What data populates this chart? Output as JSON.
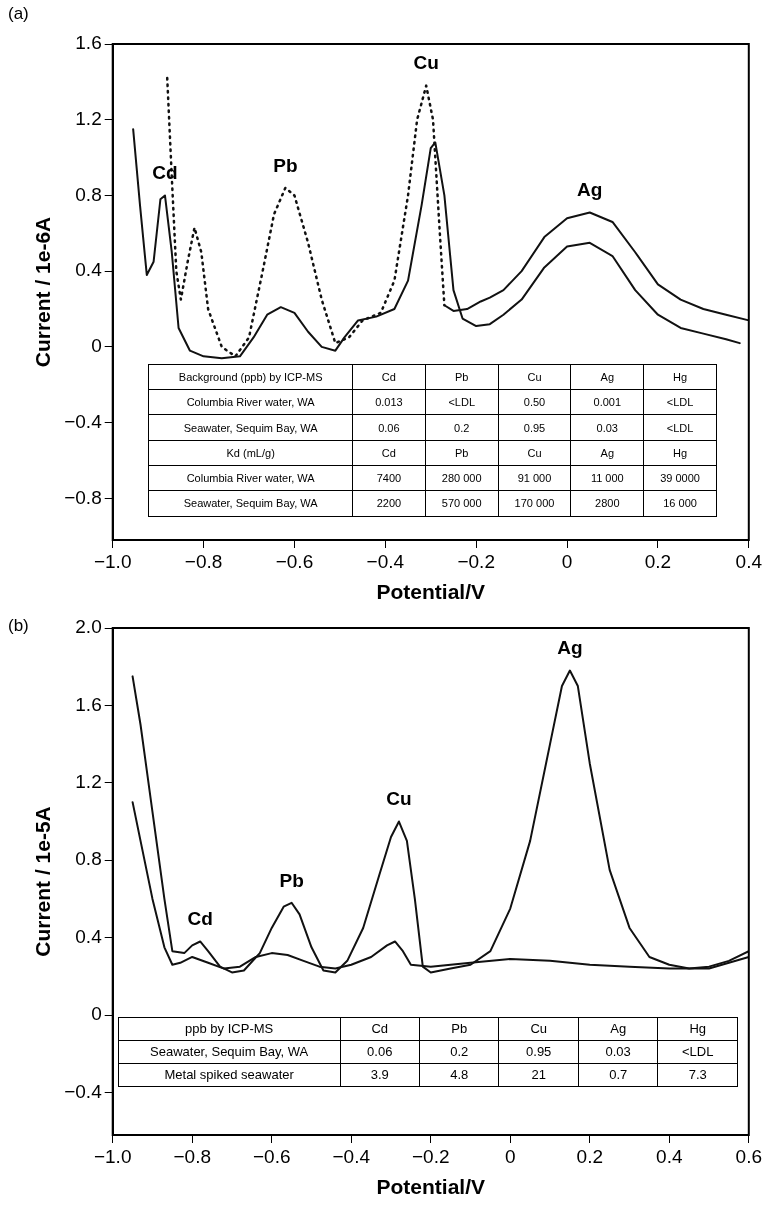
{
  "chart_data": [
    {
      "type": "line",
      "title": "(a)",
      "xlabel": "Potential/V",
      "ylabel": "Current / 1e-6A",
      "grid": false,
      "legend": false,
      "marker": "none",
      "xlim": [
        -1.0,
        0.4
      ],
      "xticks": [
        {
          "value": -1.0,
          "label": "−1.0"
        },
        {
          "value": -0.8,
          "label": "−0.8"
        },
        {
          "value": -0.6,
          "label": "−0.6"
        },
        {
          "value": -0.4,
          "label": "−0.4"
        },
        {
          "value": -0.2,
          "label": "−0.2"
        },
        0,
        0.2,
        0.4
      ],
      "ylim": [
        -1.02,
        1.6
      ],
      "yticks": [
        {
          "value": -0.8,
          "label": "−0.8"
        },
        {
          "value": -0.4,
          "label": "−0.4"
        },
        0,
        0.4,
        0.8,
        1.2,
        1.6
      ],
      "series": [
        {
          "color": "#111111",
          "line_style": "solid",
          "x": [
            -0.955,
            -0.94,
            -0.925,
            -0.91,
            -0.895,
            -0.885,
            -0.87,
            -0.855,
            -0.83,
            -0.8,
            -0.76,
            -0.72,
            -0.69,
            -0.66,
            -0.63,
            -0.6,
            -0.57,
            -0.54,
            -0.51,
            -0.49,
            -0.46,
            -0.42,
            -0.38,
            -0.35,
            -0.32,
            -0.3,
            -0.29,
            -0.27,
            -0.25,
            -0.23,
            -0.2,
            -0.17,
            -0.14,
            -0.1,
            -0.05,
            0.0,
            0.05,
            0.1,
            0.15,
            0.2,
            0.25,
            0.3,
            0.35,
            0.38
          ],
          "values": [
            1.15,
            0.75,
            0.38,
            0.45,
            0.78,
            0.8,
            0.5,
            0.1,
            -0.02,
            -0.05,
            -0.06,
            -0.05,
            0.05,
            0.17,
            0.21,
            0.18,
            0.08,
            0.0,
            -0.02,
            0.05,
            0.14,
            0.16,
            0.2,
            0.35,
            0.75,
            1.05,
            1.08,
            0.8,
            0.3,
            0.15,
            0.11,
            0.12,
            0.17,
            0.25,
            0.42,
            0.53,
            0.55,
            0.48,
            0.3,
            0.17,
            0.1,
            0.07,
            0.04,
            0.02
          ]
        },
        {
          "color": "#111111",
          "line_style": "dotted",
          "x": [
            -0.88,
            -0.87,
            -0.86,
            -0.85,
            -0.835,
            -0.82,
            -0.805,
            -0.79,
            -0.76,
            -0.73,
            -0.7,
            -0.67,
            -0.645,
            -0.62,
            -0.6,
            -0.57,
            -0.54,
            -0.51,
            -0.48,
            -0.45,
            -0.41,
            -0.38,
            -0.35,
            -0.33,
            -0.31,
            -0.295,
            -0.28,
            -0.27
          ],
          "values": [
            1.42,
            0.9,
            0.4,
            0.25,
            0.45,
            0.63,
            0.5,
            0.2,
            0.0,
            -0.05,
            0.05,
            0.4,
            0.7,
            0.84,
            0.8,
            0.55,
            0.25,
            0.02,
            0.05,
            0.14,
            0.18,
            0.35,
            0.8,
            1.2,
            1.38,
            1.2,
            0.6,
            0.22
          ]
        },
        {
          "color": "#111111",
          "line_style": "solid",
          "x": [
            -0.27,
            -0.25,
            -0.22,
            -0.19,
            -0.17,
            -0.14,
            -0.1,
            -0.05,
            0.0,
            0.05,
            0.1,
            0.15,
            0.2,
            0.25,
            0.3,
            0.35,
            0.4
          ],
          "values": [
            0.22,
            0.19,
            0.2,
            0.24,
            0.26,
            0.3,
            0.4,
            0.58,
            0.68,
            0.71,
            0.66,
            0.5,
            0.33,
            0.25,
            0.2,
            0.17,
            0.14
          ]
        }
      ],
      "annotations": [
        {
          "text": "Cd",
          "x": -0.885,
          "y": 0.8
        },
        {
          "text": "Pb",
          "x": -0.62,
          "y": 0.84
        },
        {
          "text": "Cu",
          "x": -0.31,
          "y": 1.38
        },
        {
          "text": "Ag",
          "x": 0.05,
          "y": 0.71
        },
        "Background (ppb) by ICP-MS",
        "Cd",
        "Pb",
        "Cu",
        "Ag",
        "Hg",
        "Columbia River water, WA",
        "0.013",
        "<LDL",
        "0.50",
        "0.001",
        "<LDL",
        "Seawater, Sequim Bay, WA",
        "0.06",
        "0.2",
        "0.95",
        "0.03",
        "<LDL",
        "Kd (mL/g)",
        "Cd",
        "Pb",
        "Cu",
        "Ag",
        "Hg",
        "Columbia River water, WA",
        "7400",
        "280 000",
        "91 000",
        "11 000",
        "39 0000",
        "Seawater, Sequim Bay, WA",
        "2200",
        "570 000",
        "170 000",
        "2800",
        "16 000"
      ]
    },
    {
      "type": "line",
      "title": "(b)",
      "xlabel": "Potential/V",
      "ylabel": "Current / 1e-5A",
      "grid": false,
      "legend": false,
      "marker": "none",
      "xlim": [
        -1.0,
        0.6
      ],
      "xticks": [
        {
          "value": -1.0,
          "label": "−1.0"
        },
        {
          "value": -0.8,
          "label": "−0.8"
        },
        {
          "value": -0.6,
          "label": "−0.6"
        },
        {
          "value": -0.4,
          "label": "−0.4"
        },
        {
          "value": -0.2,
          "label": "−0.2"
        },
        0,
        0.2,
        0.4,
        0.6
      ],
      "ylim": [
        -0.62,
        2.0
      ],
      "yticks": [
        {
          "value": -0.4,
          "label": "−0.4"
        },
        0,
        0.4,
        0.8,
        1.2,
        1.6,
        {
          "value": 2,
          "label": "2.0"
        }
      ],
      "series": [
        {
          "color": "#111111",
          "line_style": "solid",
          "x": [
            -0.95,
            -0.93,
            -0.9,
            -0.87,
            -0.85,
            -0.82,
            -0.8,
            -0.78,
            -0.76,
            -0.73,
            -0.7,
            -0.67,
            -0.63,
            -0.6,
            -0.57,
            -0.55,
            -0.53,
            -0.5,
            -0.47,
            -0.44,
            -0.41,
            -0.37,
            -0.33,
            -0.3,
            -0.28,
            -0.26,
            -0.24,
            -0.22,
            -0.2,
            -0.15,
            -0.1,
            -0.05,
            0.0,
            0.05,
            0.1,
            0.13,
            0.15,
            0.17,
            0.2,
            0.25,
            0.3,
            0.35,
            0.4,
            0.45,
            0.5,
            0.55,
            0.6
          ],
          "values": [
            1.75,
            1.5,
            1.05,
            0.6,
            0.33,
            0.32,
            0.36,
            0.38,
            0.33,
            0.25,
            0.22,
            0.23,
            0.32,
            0.45,
            0.56,
            0.58,
            0.52,
            0.35,
            0.23,
            0.22,
            0.28,
            0.45,
            0.72,
            0.92,
            1.0,
            0.9,
            0.6,
            0.25,
            0.22,
            0.24,
            0.26,
            0.33,
            0.55,
            0.9,
            1.4,
            1.7,
            1.78,
            1.7,
            1.3,
            0.75,
            0.45,
            0.3,
            0.26,
            0.24,
            0.25,
            0.28,
            0.33
          ]
        },
        {
          "color": "#111111",
          "line_style": "solid",
          "x": [
            -0.95,
            -0.93,
            -0.9,
            -0.87,
            -0.85,
            -0.83,
            -0.8,
            -0.76,
            -0.72,
            -0.68,
            -0.64,
            -0.6,
            -0.56,
            -0.52,
            -0.48,
            -0.44,
            -0.4,
            -0.35,
            -0.31,
            -0.29,
            -0.27,
            -0.25,
            -0.2,
            -0.1,
            0.0,
            0.1,
            0.2,
            0.3,
            0.4,
            0.5,
            0.6
          ],
          "values": [
            1.1,
            0.9,
            0.6,
            0.35,
            0.26,
            0.27,
            0.3,
            0.27,
            0.24,
            0.25,
            0.3,
            0.32,
            0.31,
            0.28,
            0.25,
            0.24,
            0.26,
            0.3,
            0.36,
            0.38,
            0.33,
            0.26,
            0.25,
            0.27,
            0.29,
            0.28,
            0.26,
            0.25,
            0.24,
            0.24,
            0.3
          ]
        }
      ],
      "annotations": [
        {
          "text": "Cd",
          "x": -0.78,
          "y": 0.38
        },
        {
          "text": "Pb",
          "x": -0.55,
          "y": 0.58
        },
        {
          "text": "Cu",
          "x": -0.28,
          "y": 1.0
        },
        {
          "text": "Ag",
          "x": 0.15,
          "y": 1.78
        },
        "ppb by ICP-MS",
        "Cd",
        "Pb",
        "Cu",
        "Ag",
        "Hg",
        "Seawater, Sequim Bay, WA",
        "0.06",
        "0.2",
        "0.95",
        "0.03",
        "<LDL",
        "Metal spiked seawater",
        "3.9",
        "4.8",
        "21",
        "0.7",
        "7.3"
      ]
    }
  ]
}
